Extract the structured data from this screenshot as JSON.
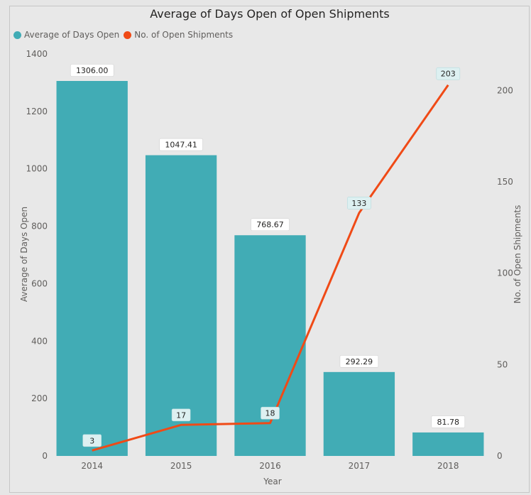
{
  "chart_data": {
    "type": "bar",
    "title": "Average of Days Open of Open Shipments",
    "xlabel": "Year",
    "ylabel": "Average of Days Open",
    "y2label": "No. of Open Shipments",
    "categories": [
      "2014",
      "2015",
      "2016",
      "2017",
      "2018"
    ],
    "series": [
      {
        "name": "Average of Days Open",
        "type": "bar",
        "axis": "left",
        "color": "#41acb5",
        "values": [
          1306.0,
          1047.41,
          768.67,
          292.29,
          81.78
        ],
        "labels": [
          "1306.00",
          "1047.41",
          "768.67",
          "292.29",
          "81.78"
        ]
      },
      {
        "name": "No. of Open Shipments",
        "type": "line",
        "axis": "right",
        "color": "#f04a16",
        "values": [
          3,
          17,
          18,
          133,
          203
        ],
        "labels": [
          "3",
          "17",
          "18",
          "133",
          "203"
        ]
      }
    ],
    "ylim": [
      0,
      1400
    ],
    "yticks": [
      0,
      200,
      400,
      600,
      800,
      1000,
      1200,
      1400
    ],
    "y2lim": [
      0,
      220
    ],
    "y2ticks": [
      0,
      50,
      100,
      150,
      200
    ],
    "legend_position": "top-left",
    "grid": false
  }
}
